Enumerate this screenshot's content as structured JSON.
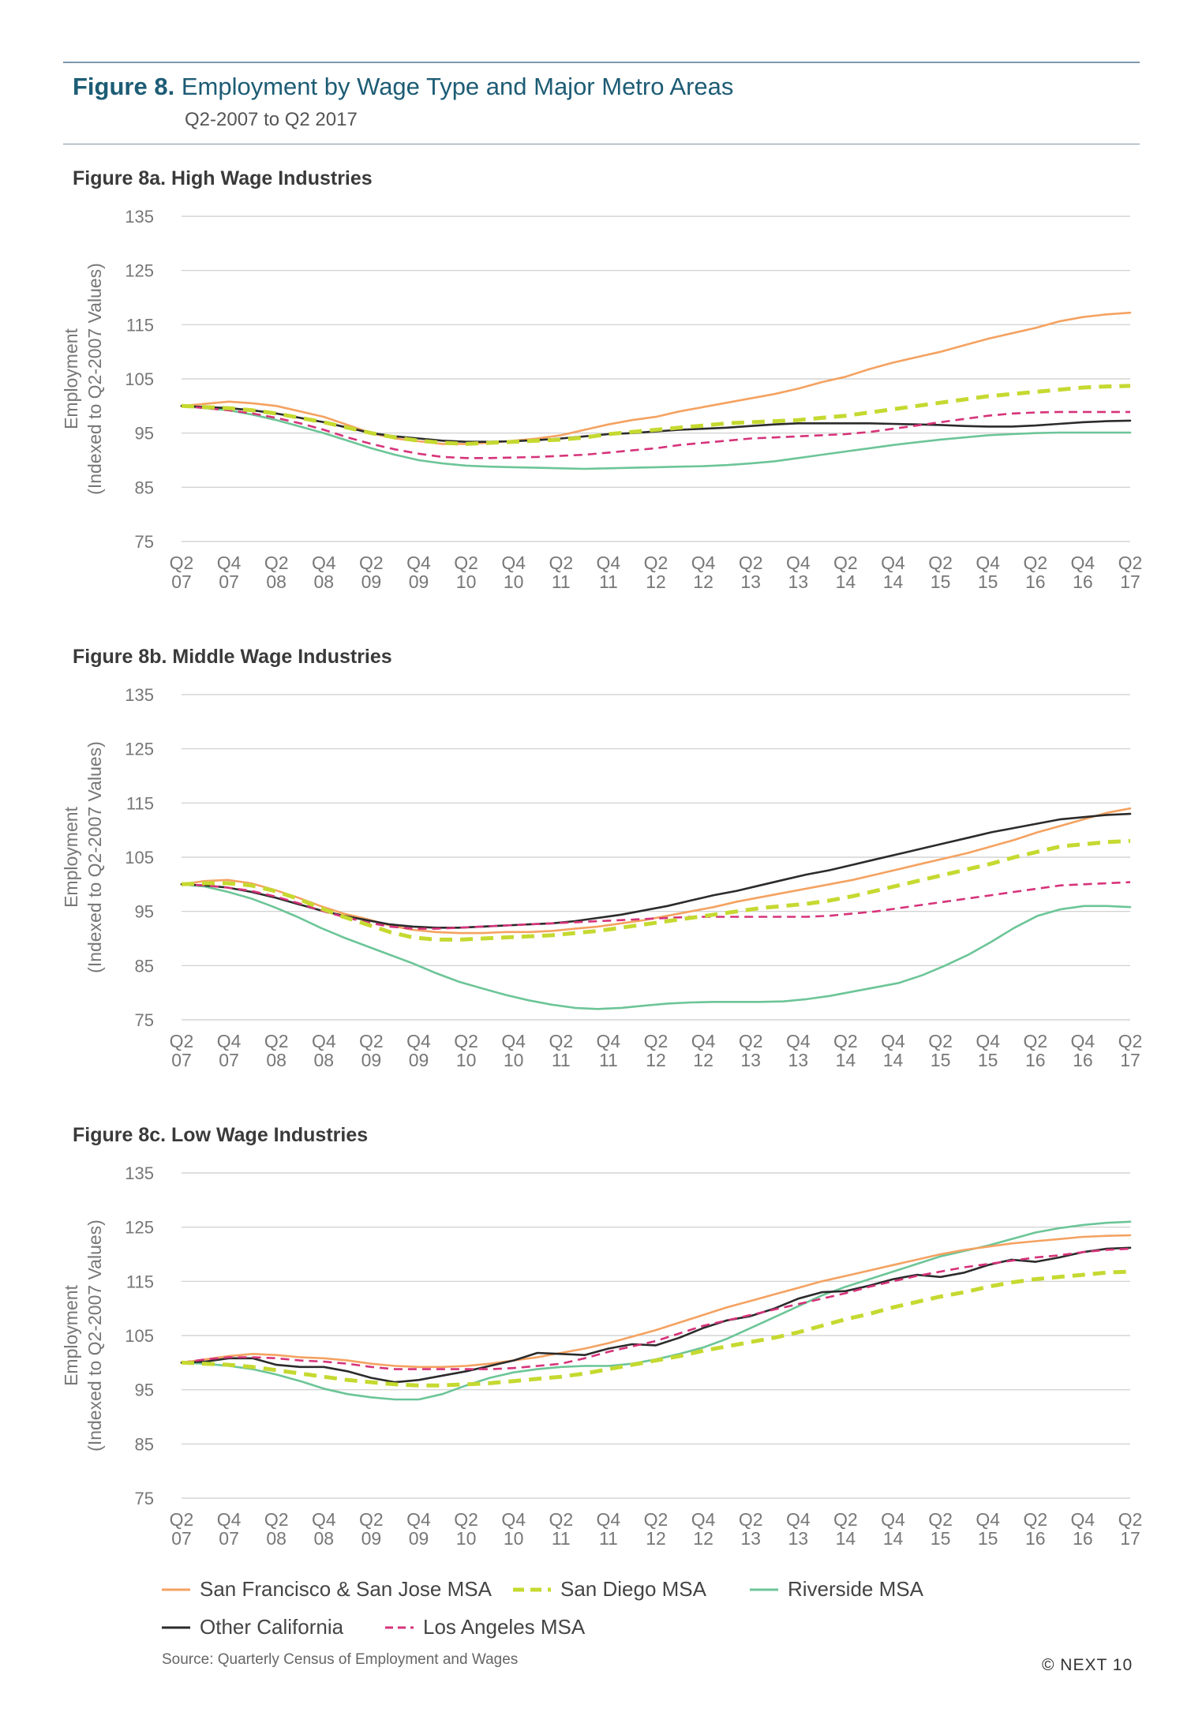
{
  "header": {
    "figure_label": "Figure 8.",
    "figure_title": "Employment by Wage Type and Major Metro Areas",
    "subtitle": "Q2-2007 to Q2 2017"
  },
  "legend": [
    {
      "name": "San Francisco & San Jose MSA",
      "color": "#f4a261",
      "style": "solid"
    },
    {
      "name": "San Diego MSA",
      "color": "#c5d930",
      "style": "dashed-thick"
    },
    {
      "name": "Riverside MSA",
      "color": "#6cc597",
      "style": "solid"
    },
    {
      "name": "Other California",
      "color": "#2b2b2b",
      "style": "solid"
    },
    {
      "name": "Los Angeles MSA",
      "color": "#d6337a",
      "style": "dashed"
    }
  ],
  "footer": {
    "source": "Source: Quarterly Census of Employment and Wages",
    "copyright": "© NEXT 10"
  },
  "chart_data": [
    {
      "type": "line",
      "title": "Figure 8a. High Wage Industries",
      "ylabel_line1": "Employment",
      "ylabel_line2": "(Indexed to Q2-2007 Values)",
      "ylim": [
        75,
        135
      ],
      "yticks": [
        135,
        125,
        115,
        105,
        95,
        85,
        75
      ],
      "grid": true,
      "xticks": [
        [
          "Q2",
          "07"
        ],
        [
          "Q4",
          "07"
        ],
        [
          "Q2",
          "08"
        ],
        [
          "Q4",
          "08"
        ],
        [
          "Q2",
          "09"
        ],
        [
          "Q4",
          "09"
        ],
        [
          "Q2",
          "10"
        ],
        [
          "Q4",
          "10"
        ],
        [
          "Q2",
          "11"
        ],
        [
          "Q4",
          "11"
        ],
        [
          "Q2",
          "12"
        ],
        [
          "Q4",
          "12"
        ],
        [
          "Q2",
          "13"
        ],
        [
          "Q4",
          "13"
        ],
        [
          "Q2",
          "14"
        ],
        [
          "Q4",
          "14"
        ],
        [
          "Q2",
          "15"
        ],
        [
          "Q4",
          "15"
        ],
        [
          "Q2",
          "16"
        ],
        [
          "Q4",
          "16"
        ],
        [
          "Q2",
          "17"
        ]
      ],
      "series": [
        {
          "name": "San Francisco & San Jose MSA",
          "values": [
            100,
            100.4,
            100.8,
            100.5,
            100,
            99,
            98,
            96.5,
            95,
            94,
            93.5,
            93,
            93,
            93.2,
            93.6,
            94,
            94.6,
            95.6,
            96.6,
            97.4,
            98,
            99,
            99.8,
            100.6,
            101.4,
            102.2,
            103.2,
            104.4,
            105.4,
            106.8,
            108,
            109,
            110,
            111.2,
            112.4,
            113.4,
            114.4,
            115.6,
            116.4,
            116.9,
            117.2
          ]
        },
        {
          "name": "San Diego MSA",
          "values": [
            100,
            99.8,
            99.6,
            99.2,
            98.6,
            97.8,
            97,
            96,
            95,
            94.2,
            93.6,
            93.2,
            93,
            93.2,
            93.4,
            93.6,
            93.8,
            94.2,
            94.8,
            95.2,
            95.6,
            96,
            96.4,
            96.8,
            97,
            97.2,
            97.4,
            97.8,
            98.2,
            98.8,
            99.4,
            100,
            100.6,
            101.2,
            101.8,
            102.2,
            102.6,
            103,
            103.4,
            103.6,
            103.7
          ]
        },
        {
          "name": "Riverside MSA",
          "values": [
            100,
            99.6,
            99.2,
            98.4,
            97.4,
            96.2,
            95,
            93.6,
            92.2,
            91,
            90,
            89.4,
            89,
            88.8,
            88.7,
            88.6,
            88.5,
            88.4,
            88.5,
            88.6,
            88.7,
            88.8,
            88.9,
            89.1,
            89.4,
            89.8,
            90.4,
            91,
            91.6,
            92.2,
            92.8,
            93.3,
            93.8,
            94.2,
            94.6,
            94.8,
            95,
            95.1,
            95.1,
            95.1,
            95.1
          ]
        },
        {
          "name": "Other California",
          "values": [
            100,
            99.8,
            99.6,
            99.2,
            98.6,
            97.8,
            97,
            96,
            95,
            94.4,
            94,
            93.6,
            93.4,
            93.4,
            93.5,
            93.7,
            94,
            94.4,
            94.8,
            95,
            95.3,
            95.6,
            95.8,
            96,
            96.3,
            96.6,
            96.8,
            96.8,
            96.8,
            96.8,
            96.7,
            96.6,
            96.5,
            96.3,
            96.2,
            96.2,
            96.4,
            96.7,
            97,
            97.2,
            97.3
          ]
        },
        {
          "name": "Los Angeles MSA",
          "values": [
            100,
            99.6,
            99.2,
            98.6,
            97.8,
            96.8,
            95.6,
            94.2,
            93,
            92,
            91.2,
            90.6,
            90.4,
            90.4,
            90.5,
            90.6,
            90.8,
            91,
            91.4,
            91.8,
            92.2,
            92.8,
            93.2,
            93.6,
            94,
            94.2,
            94.4,
            94.6,
            94.8,
            95.2,
            95.8,
            96.4,
            97,
            97.6,
            98.2,
            98.6,
            98.8,
            98.9,
            98.9,
            98.9,
            98.9
          ]
        }
      ]
    },
    {
      "type": "line",
      "title": "Figure 8b. Middle Wage Industries",
      "ylabel_line1": "Employment",
      "ylabel_line2": "(Indexed to Q2-2007 Values)",
      "ylim": [
        75,
        135
      ],
      "yticks": [
        135,
        125,
        115,
        105,
        95,
        85,
        75
      ],
      "grid": true,
      "xticks": [
        [
          "Q2",
          "07"
        ],
        [
          "Q4",
          "07"
        ],
        [
          "Q2",
          "08"
        ],
        [
          "Q4",
          "08"
        ],
        [
          "Q2",
          "09"
        ],
        [
          "Q4",
          "09"
        ],
        [
          "Q2",
          "10"
        ],
        [
          "Q4",
          "10"
        ],
        [
          "Q2",
          "11"
        ],
        [
          "Q4",
          "11"
        ],
        [
          "Q2",
          "12"
        ],
        [
          "Q4",
          "12"
        ],
        [
          "Q2",
          "13"
        ],
        [
          "Q4",
          "13"
        ],
        [
          "Q2",
          "14"
        ],
        [
          "Q4",
          "14"
        ],
        [
          "Q2",
          "15"
        ],
        [
          "Q4",
          "15"
        ],
        [
          "Q2",
          "16"
        ],
        [
          "Q4",
          "16"
        ],
        [
          "Q2",
          "17"
        ]
      ],
      "series": [
        {
          "name": "San Francisco & San Jose MSA",
          "values": [
            100,
            100.6,
            100.8,
            100.2,
            99,
            97.6,
            96,
            94.6,
            93.6,
            92.4,
            91.6,
            91.2,
            91,
            91,
            91.2,
            91.2,
            91.4,
            91.8,
            92.2,
            92.8,
            93.4,
            94.2,
            95,
            95.8,
            96.8,
            97.6,
            98.4,
            99.2,
            100,
            100.8,
            101.8,
            102.8,
            103.8,
            104.8,
            105.8,
            107,
            108.2,
            109.6,
            110.8,
            112,
            113.2,
            114
          ]
        },
        {
          "name": "San Diego MSA",
          "values": [
            100,
            100.2,
            100.2,
            99.8,
            98.8,
            97.4,
            95.6,
            94,
            92.6,
            91.2,
            90.2,
            89.8,
            89.8,
            90,
            90.2,
            90.4,
            90.6,
            91,
            91.4,
            92,
            92.6,
            93.2,
            93.8,
            94.4,
            95,
            95.6,
            96,
            96.4,
            97,
            97.8,
            98.8,
            99.8,
            100.8,
            101.8,
            102.8,
            103.8,
            105,
            106,
            107,
            107.4,
            107.8,
            108
          ]
        },
        {
          "name": "Riverside MSA",
          "values": [
            100,
            99.6,
            98.6,
            97.4,
            95.8,
            94,
            92,
            90.2,
            88.6,
            87,
            85.4,
            83.6,
            82,
            80.8,
            79.6,
            78.6,
            77.8,
            77.2,
            77,
            77.2,
            77.6,
            78,
            78.2,
            78.3,
            78.3,
            78.3,
            78.4,
            78.8,
            79.4,
            80.2,
            81,
            81.8,
            83.2,
            85,
            87,
            89.4,
            92,
            94.2,
            95.4,
            96,
            96,
            95.8
          ]
        },
        {
          "name": "Other California",
          "values": [
            100,
            99.8,
            99.4,
            98.6,
            97.6,
            96.4,
            95.2,
            94.2,
            93.4,
            92.6,
            92.2,
            92,
            92,
            92.2,
            92.4,
            92.6,
            92.8,
            93.2,
            93.8,
            94.4,
            95.2,
            96,
            97,
            98,
            98.8,
            99.8,
            100.8,
            101.8,
            102.6,
            103.6,
            104.6,
            105.6,
            106.6,
            107.6,
            108.6,
            109.6,
            110.4,
            111.2,
            112,
            112.4,
            112.8,
            113
          ]
        },
        {
          "name": "Los Angeles MSA",
          "values": [
            100,
            99.8,
            99.4,
            98.8,
            97.8,
            96.6,
            95.2,
            94,
            93,
            92.2,
            91.8,
            91.8,
            92,
            92.2,
            92.4,
            92.6,
            92.8,
            93,
            93.2,
            93.4,
            93.6,
            93.8,
            94,
            94,
            94,
            94,
            94,
            94,
            94.2,
            94.6,
            95,
            95.6,
            96.2,
            96.8,
            97.4,
            98,
            98.6,
            99.2,
            99.8,
            100,
            100.2,
            100.4
          ]
        }
      ]
    },
    {
      "type": "line",
      "title": "Figure 8c. Low Wage Industries",
      "ylabel_line1": "Employment",
      "ylabel_line2": "(Indexed to Q2-2007 Values)",
      "ylim": [
        75,
        135
      ],
      "yticks": [
        135,
        125,
        115,
        105,
        95,
        85,
        75
      ],
      "grid": true,
      "xticks": [
        [
          "Q2",
          "07"
        ],
        [
          "Q4",
          "07"
        ],
        [
          "Q2",
          "08"
        ],
        [
          "Q4",
          "08"
        ],
        [
          "Q2",
          "09"
        ],
        [
          "Q4",
          "09"
        ],
        [
          "Q2",
          "10"
        ],
        [
          "Q4",
          "10"
        ],
        [
          "Q2",
          "11"
        ],
        [
          "Q4",
          "11"
        ],
        [
          "Q2",
          "12"
        ],
        [
          "Q4",
          "12"
        ],
        [
          "Q2",
          "13"
        ],
        [
          "Q4",
          "13"
        ],
        [
          "Q2",
          "14"
        ],
        [
          "Q4",
          "14"
        ],
        [
          "Q2",
          "15"
        ],
        [
          "Q4",
          "15"
        ],
        [
          "Q2",
          "16"
        ],
        [
          "Q4",
          "16"
        ],
        [
          "Q2",
          "17"
        ]
      ],
      "series": [
        {
          "name": "San Francisco & San Jose MSA",
          "values": [
            100,
            100.6,
            101.2,
            101.6,
            101.4,
            101,
            100.8,
            100.4,
            99.8,
            99.4,
            99.2,
            99.2,
            99.4,
            99.8,
            100.4,
            101,
            101.8,
            102.6,
            103.6,
            104.8,
            106,
            107.4,
            108.8,
            110.2,
            111.4,
            112.6,
            113.8,
            115,
            116,
            117,
            118,
            119,
            120,
            120.8,
            121.4,
            122,
            122.4,
            122.8,
            123.2,
            123.4,
            123.5
          ]
        },
        {
          "name": "San Diego MSA",
          "values": [
            100,
            99.8,
            99.6,
            99.2,
            98.6,
            98,
            97.4,
            96.8,
            96.4,
            96,
            95.8,
            95.8,
            96,
            96.2,
            96.6,
            97,
            97.4,
            98,
            98.8,
            99.6,
            100.4,
            101.2,
            102.2,
            103,
            103.8,
            104.6,
            105.6,
            106.8,
            108,
            109,
            110.2,
            111.2,
            112.2,
            113,
            114,
            114.8,
            115.4,
            115.8,
            116.2,
            116.6,
            116.8
          ]
        },
        {
          "name": "Riverside MSA",
          "values": [
            100,
            99.8,
            99.4,
            98.8,
            97.8,
            96.6,
            95.2,
            94.2,
            93.6,
            93.2,
            93.2,
            94.2,
            95.8,
            97.2,
            98.2,
            98.8,
            99.2,
            99.4,
            99.4,
            99.8,
            100.6,
            101.6,
            102.8,
            104.4,
            106.4,
            108.4,
            110.4,
            112.4,
            114,
            115.4,
            116.8,
            118.2,
            119.6,
            120.6,
            121.6,
            122.8,
            124,
            124.8,
            125.4,
            125.8,
            126
          ]
        },
        {
          "name": "Other California",
          "values": [
            100,
            100.2,
            100.8,
            100.8,
            99.6,
            99.2,
            99.2,
            98.4,
            97.2,
            96.4,
            96.8,
            97.6,
            98.4,
            99.4,
            100.4,
            101.8,
            101.6,
            101.4,
            102.6,
            103.4,
            103.2,
            104.6,
            106.4,
            107.8,
            108.6,
            110,
            111.8,
            113,
            113.2,
            114.2,
            115.4,
            116.2,
            115.8,
            116.6,
            118,
            119,
            118.6,
            119.4,
            120.4,
            121,
            121.2
          ]
        },
        {
          "name": "Los Angeles MSA",
          "values": [
            100,
            100.6,
            101,
            101,
            100.8,
            100.4,
            100.2,
            99.8,
            99.2,
            98.8,
            98.8,
            98.8,
            98.8,
            98.8,
            99,
            99.4,
            99.8,
            100.8,
            102,
            103,
            104,
            105.4,
            106.8,
            107.8,
            108.8,
            109.8,
            110.8,
            111.8,
            112.8,
            114,
            115,
            116,
            116.8,
            117.6,
            118.2,
            118.8,
            119.4,
            119.8,
            120.4,
            120.8,
            121
          ]
        }
      ]
    }
  ]
}
